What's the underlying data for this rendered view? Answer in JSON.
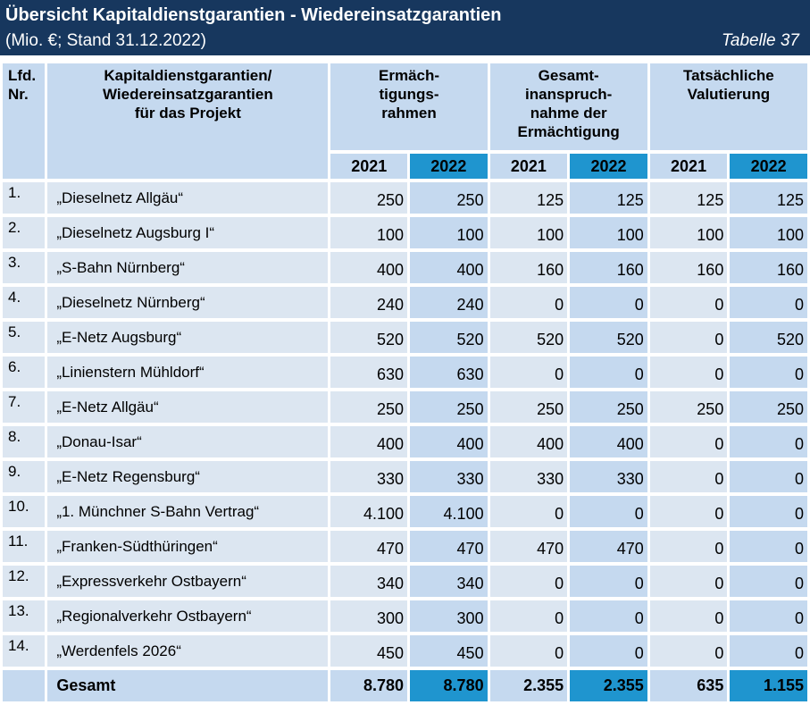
{
  "header": {
    "title": "Übersicht Kapitaldienstgarantien - Wiedereinsatzgarantien",
    "subtitle": "(Mio. €; Stand 31.12.2022)",
    "table_number": "Tabelle 37"
  },
  "columns": {
    "nr": [
      "Lfd.",
      "Nr."
    ],
    "project": [
      "Kapitaldienstgarantien/",
      "Wiedereinsatzgarantien",
      "für das Projekt"
    ],
    "group1": [
      "Ermäch-",
      "tigungs-",
      "rahmen"
    ],
    "group2": [
      "Gesamt-",
      "inanspruch-",
      "nahme der",
      "Ermächtigung"
    ],
    "group3": [
      "Tatsächliche",
      "Valutierung"
    ],
    "year_prev": "2021",
    "year_cur": "2022"
  },
  "rows": [
    {
      "nr": "1.",
      "name": "„Dieselnetz Allgäu“",
      "v": [
        "250",
        "250",
        "125",
        "125",
        "125",
        "125"
      ]
    },
    {
      "nr": "2.",
      "name": "„Dieselnetz Augsburg I“",
      "v": [
        "100",
        "100",
        "100",
        "100",
        "100",
        "100"
      ]
    },
    {
      "nr": "3.",
      "name": "„S-Bahn Nürnberg“",
      "v": [
        "400",
        "400",
        "160",
        "160",
        "160",
        "160"
      ]
    },
    {
      "nr": "4.",
      "name": "„Dieselnetz Nürnberg“",
      "v": [
        "240",
        "240",
        "0",
        "0",
        "0",
        "0"
      ]
    },
    {
      "nr": "5.",
      "name": "„E-Netz Augsburg“",
      "v": [
        "520",
        "520",
        "520",
        "520",
        "0",
        "520"
      ]
    },
    {
      "nr": "6.",
      "name": "„Linienstern Mühldorf“",
      "v": [
        "630",
        "630",
        "0",
        "0",
        "0",
        "0"
      ]
    },
    {
      "nr": "7.",
      "name": "„E-Netz Allgäu“",
      "v": [
        "250",
        "250",
        "250",
        "250",
        "250",
        "250"
      ]
    },
    {
      "nr": "8.",
      "name": "„Donau-Isar“",
      "v": [
        "400",
        "400",
        "400",
        "400",
        "0",
        "0"
      ]
    },
    {
      "nr": "9.",
      "name": "„E-Netz Regensburg“",
      "v": [
        "330",
        "330",
        "330",
        "330",
        "0",
        "0"
      ]
    },
    {
      "nr": "10.",
      "name": "„1. Münchner S-Bahn Vertrag“",
      "v": [
        "4.100",
        "4.100",
        "0",
        "0",
        "0",
        "0"
      ]
    },
    {
      "nr": "11.",
      "name": "„Franken-Südthüringen“",
      "v": [
        "470",
        "470",
        "470",
        "470",
        "0",
        "0"
      ]
    },
    {
      "nr": "12.",
      "name": "„Expressverkehr Ostbayern“",
      "v": [
        "340",
        "340",
        "0",
        "0",
        "0",
        "0"
      ]
    },
    {
      "nr": "13.",
      "name": "„Regionalverkehr Ostbayern“",
      "v": [
        "300",
        "300",
        "0",
        "0",
        "0",
        "0"
      ]
    },
    {
      "nr": "14.",
      "name": "„Werdenfels 2026“",
      "v": [
        "450",
        "450",
        "0",
        "0",
        "0",
        "0"
      ]
    }
  ],
  "total": {
    "label": "Gesamt",
    "v": [
      "8.780",
      "8.780",
      "2.355",
      "2.355",
      "635",
      "1.155"
    ]
  },
  "colors": {
    "title_bg": "#17375e",
    "header_bg": "#c5d9ef",
    "row_bg": "#dce6f1",
    "current_year_accent": "#1f95cf"
  }
}
